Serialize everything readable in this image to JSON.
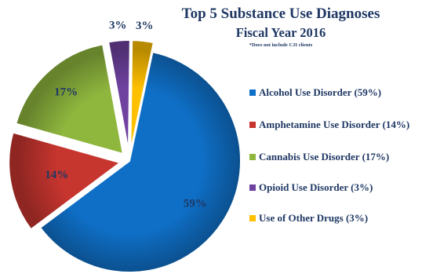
{
  "chart_data": {
    "type": "pie",
    "title": "Top 5 Substance Use Diagnoses",
    "subtitle": "Fiscal Year 2016",
    "note": "*Does not include CJI clients",
    "categories": [
      "Alcohol Use Disorder (59%)",
      "Amphetamine Use Disorder (14%)",
      "Cannabis Use Disorder (17%)",
      "Opioid Use Disorder (3%)",
      "Use of Other Drugs (3%)"
    ],
    "values": [
      59,
      14,
      17,
      3,
      3
    ],
    "data_labels": [
      "59%",
      "14%",
      "17%",
      "3%",
      "3%"
    ],
    "colors": [
      "#0f6fc6",
      "#c7352f",
      "#8fb73e",
      "#6f42a0",
      "#ffc000"
    ],
    "legend_position": "right"
  }
}
